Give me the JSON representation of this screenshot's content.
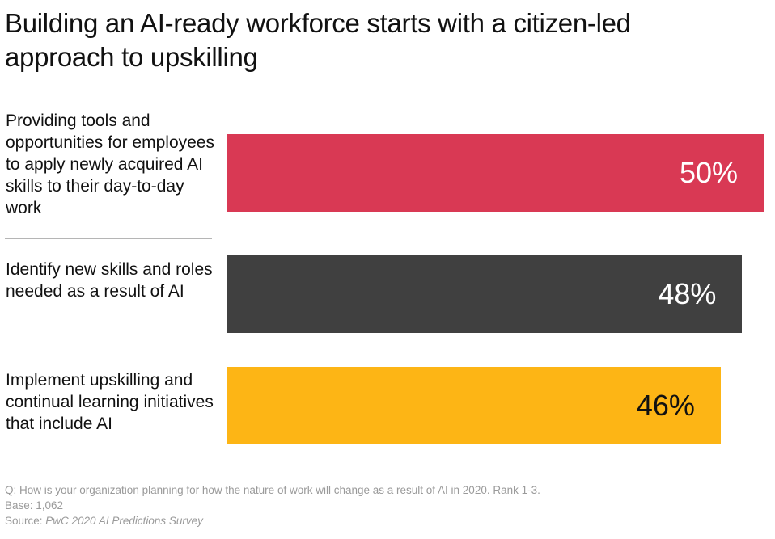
{
  "chart_data": {
    "type": "bar",
    "orientation": "horizontal",
    "title": "Building an AI-ready workforce starts with a citizen-led approach to upskilling",
    "categories": [
      "Providing tools and opportunities for employees to apply newly acquired AI skills to their day-to-day work",
      "Identify new skills and roles needed as a result of AI",
      "Implement upskilling and continual learning initiatives that include AI"
    ],
    "values": [
      50,
      48,
      46
    ],
    "value_labels": [
      "50%",
      "48%",
      "46%"
    ],
    "colors": [
      "#d93954",
      "#404040",
      "#fdb515"
    ],
    "label_colors": [
      "#ffffff",
      "#ffffff",
      "#111111"
    ],
    "xlim": [
      0,
      50
    ],
    "grid": false,
    "legend": "none"
  },
  "footer": {
    "question": "Q: How is your organization planning for how the nature of work will change as a result of AI in 2020. Rank 1-3.",
    "base": "Base: 1,062",
    "source_prefix": "Source: ",
    "source_name": "PwC 2020 AI Predictions Survey"
  }
}
